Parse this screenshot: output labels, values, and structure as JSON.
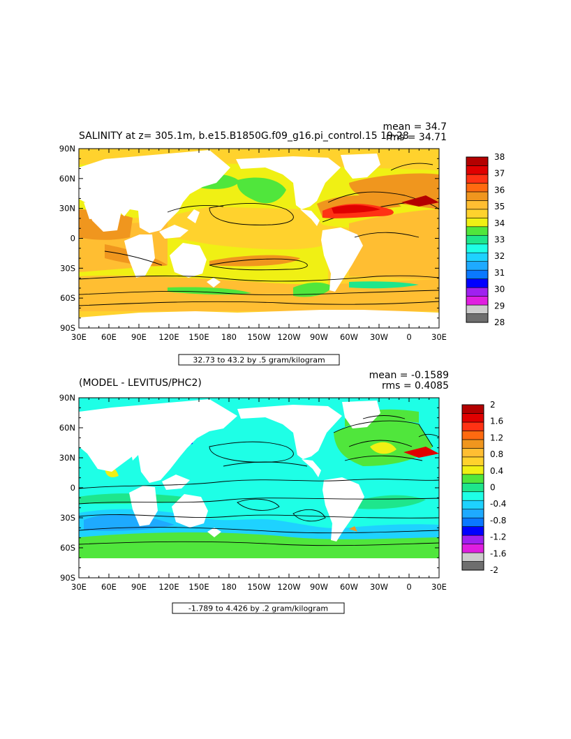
{
  "colors": {
    "levels": [
      "#6e6e6e",
      "#cdcdcd",
      "#e01ee0",
      "#a020f0",
      "#0000ff",
      "#0a78ff",
      "#1eaaff",
      "#1ed2ff",
      "#1effe6",
      "#1ee68c",
      "#50e63c",
      "#f0f014",
      "#ffd22d",
      "#ffbe32",
      "#f0961e",
      "#ff6a10",
      "#ff3214",
      "#e00000",
      "#b40000"
    ],
    "land": "#ffffff",
    "contour": "#000000"
  },
  "panels": [
    {
      "title": "SALINITY at z= 305.1m, b.e15.B1850G.f09_g16.pi_control.15 19-28",
      "mean": "mean = 34.7",
      "rms": "rms = 34.71",
      "range": "32.73 to 43.2 by .5 gram/kilogram",
      "lat_ticks": [
        "90N",
        "60N",
        "30N",
        "0",
        "30S",
        "60S",
        "90S"
      ],
      "lon_ticks": [
        "30E",
        "60E",
        "90E",
        "120E",
        "150E",
        "180",
        "150W",
        "120W",
        "90W",
        "60W",
        "30W",
        "0",
        "30E"
      ],
      "colorbar_labels": [
        "38",
        "37",
        "36",
        "35",
        "34",
        "33",
        "32",
        "31",
        "30",
        "29",
        "28"
      ],
      "ocean_base": "#ffd22d"
    },
    {
      "title": "(MODEL - LEVITUS/PHC2)",
      "mean": "mean = -0.1589",
      "rms": "rms = 0.4085",
      "range": "-1.789 to 4.426 by .2 gram/kilogram",
      "lat_ticks": [
        "90N",
        "60N",
        "30N",
        "0",
        "30S",
        "60S",
        "90S"
      ],
      "lon_ticks": [
        "30E",
        "60E",
        "90E",
        "120E",
        "150E",
        "180",
        "150W",
        "120W",
        "90W",
        "60W",
        "30W",
        "0",
        "30E"
      ],
      "colorbar_labels": [
        "2",
        "1.6",
        "1.2",
        "0.8",
        "0.4",
        "0",
        "-0.4",
        "-0.8",
        "-1.2",
        "-1.6",
        "-2"
      ],
      "ocean_base": "#1effe6"
    }
  ]
}
